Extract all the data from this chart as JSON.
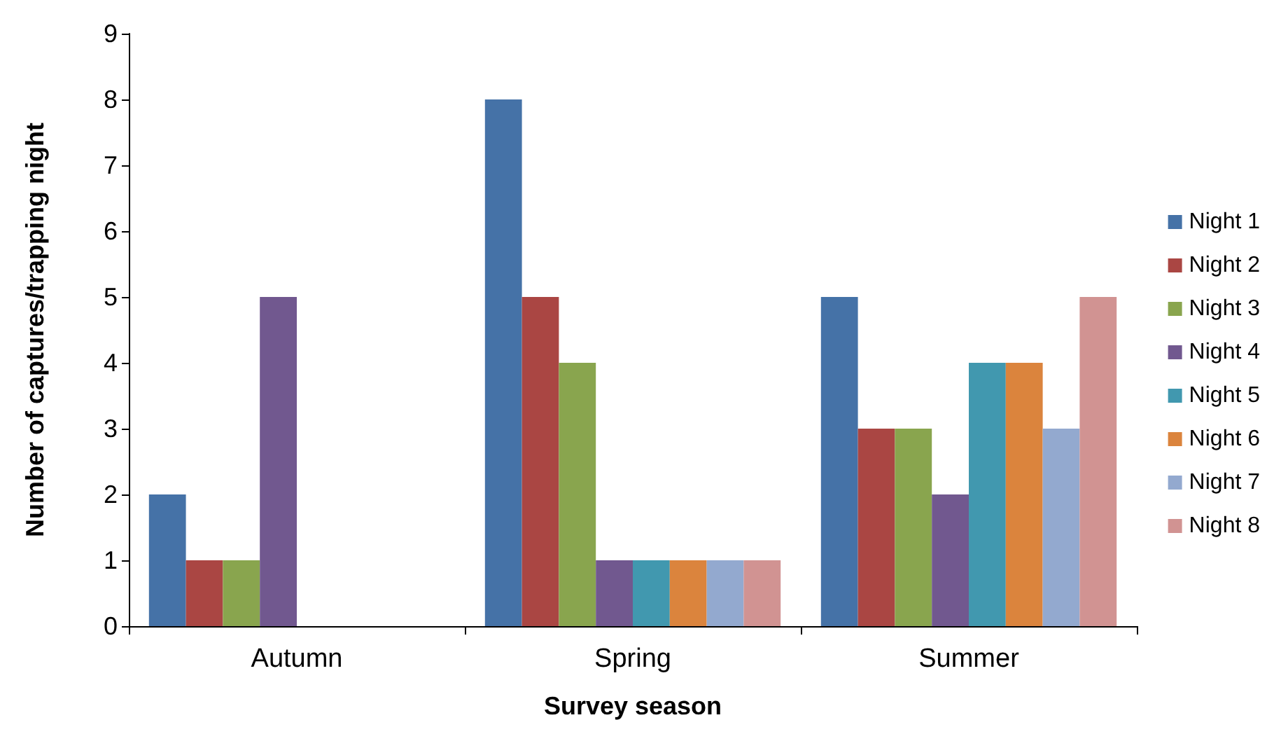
{
  "chart_data": {
    "type": "bar",
    "xlabel": "Survey season",
    "ylabel": "Number of captures/trapping night",
    "categories": [
      "Autumn",
      "Spring",
      "Summer"
    ],
    "series": [
      {
        "name": "Night 1",
        "color": "#4572a7",
        "values": [
          2,
          8,
          5
        ]
      },
      {
        "name": "Night 2",
        "color": "#aa4643",
        "values": [
          1,
          5,
          3
        ]
      },
      {
        "name": "Night 3",
        "color": "#89a54e",
        "values": [
          1,
          4,
          3
        ]
      },
      {
        "name": "Night 4",
        "color": "#71588f",
        "values": [
          5,
          1,
          2
        ]
      },
      {
        "name": "Night 5",
        "color": "#4198af",
        "values": [
          null,
          1,
          4
        ]
      },
      {
        "name": "Night 6",
        "color": "#db843d",
        "values": [
          null,
          1,
          4
        ]
      },
      {
        "name": "Night 7",
        "color": "#93a9cf",
        "values": [
          null,
          1,
          3
        ]
      },
      {
        "name": "Night 8",
        "color": "#d19392",
        "values": [
          null,
          1,
          5
        ]
      }
    ],
    "ylim": [
      0,
      9
    ],
    "yticks": [
      0,
      1,
      2,
      3,
      4,
      5,
      6,
      7,
      8,
      9
    ],
    "grid": false,
    "legend": "right"
  }
}
